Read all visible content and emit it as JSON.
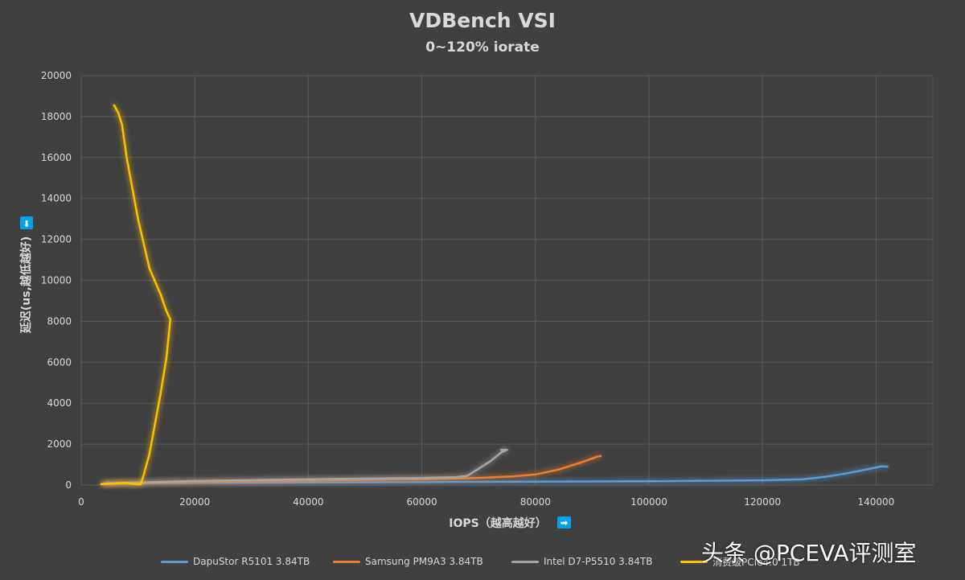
{
  "chart_data": {
    "type": "line",
    "title": "VDBench VSI",
    "subtitle": "0~120% iorate",
    "xlabel": "IOPS（越高越好）",
    "xlabel_arrow": "➡",
    "ylabel": "延迟(us,越低越好)",
    "ylabel_arrow": "⬇",
    "xlim": [
      0,
      150000
    ],
    "ylim": [
      0,
      20000
    ],
    "x_ticks": [
      0,
      20000,
      40000,
      60000,
      80000,
      100000,
      120000,
      140000
    ],
    "y_ticks": [
      0,
      2000,
      4000,
      6000,
      8000,
      10000,
      12000,
      14000,
      16000,
      18000,
      20000
    ],
    "grid": true,
    "legend_position": "bottom",
    "series": [
      {
        "name": "DapuStor R5101 3.84TB",
        "color": "#5b9bd5",
        "points": [
          [
            4000,
            60
          ],
          [
            10000,
            90
          ],
          [
            20000,
            110
          ],
          [
            40000,
            130
          ],
          [
            60000,
            150
          ],
          [
            80000,
            170
          ],
          [
            100000,
            190
          ],
          [
            120000,
            230
          ],
          [
            127000,
            280
          ],
          [
            131000,
            400
          ],
          [
            135000,
            580
          ],
          [
            139000,
            800
          ],
          [
            141000,
            920
          ],
          [
            142000,
            900
          ]
        ]
      },
      {
        "name": "Samsung PM9A3 3.84TB",
        "color": "#ed7d31",
        "points": [
          [
            4000,
            70
          ],
          [
            10000,
            100
          ],
          [
            20000,
            150
          ],
          [
            40000,
            220
          ],
          [
            60000,
            290
          ],
          [
            70000,
            350
          ],
          [
            76000,
            420
          ],
          [
            80000,
            520
          ],
          [
            84000,
            750
          ],
          [
            88000,
            1100
          ],
          [
            91000,
            1400
          ],
          [
            91500,
            1420
          ]
        ]
      },
      {
        "name": "Intel D7-P5510 3.84TB",
        "color": "#a5a5a5",
        "points": [
          [
            4000,
            80
          ],
          [
            10000,
            120
          ],
          [
            20000,
            200
          ],
          [
            40000,
            280
          ],
          [
            60000,
            350
          ],
          [
            66000,
            380
          ],
          [
            68000,
            450
          ],
          [
            70000,
            800
          ],
          [
            72000,
            1150
          ],
          [
            74000,
            1600
          ],
          [
            75000,
            1720
          ],
          [
            74000,
            1720
          ]
        ]
      },
      {
        "name": "消费级PCIe4.0 1TB",
        "color": "#ffc000",
        "points": [
          [
            3500,
            50
          ],
          [
            6000,
            80
          ],
          [
            8000,
            100
          ],
          [
            10000,
            40
          ],
          [
            10500,
            40
          ],
          [
            11000,
            500
          ],
          [
            12000,
            1500
          ],
          [
            13000,
            3000
          ],
          [
            14000,
            4500
          ],
          [
            15000,
            6200
          ],
          [
            15700,
            8100
          ],
          [
            15000,
            8500
          ],
          [
            14000,
            9300
          ],
          [
            12000,
            10600
          ],
          [
            10000,
            13000
          ],
          [
            8000,
            16000
          ],
          [
            7200,
            17600
          ],
          [
            6500,
            18200
          ],
          [
            5800,
            18550
          ]
        ]
      }
    ]
  },
  "watermark": "头条 @PCEVA评测室"
}
